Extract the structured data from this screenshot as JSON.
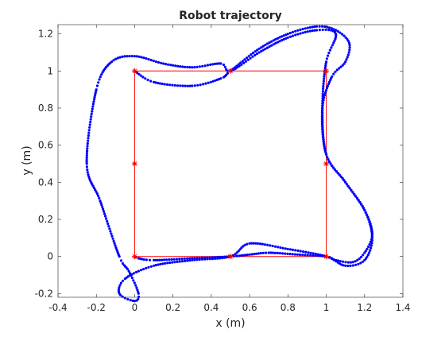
{
  "chart_data": {
    "type": "scatter",
    "title": "Robot trajectory",
    "xlabel": "x (m)",
    "ylabel": "y (m)",
    "xlim": [
      -0.4,
      1.4
    ],
    "ylim": [
      -0.22,
      1.25
    ],
    "xticks": [
      -0.4,
      -0.2,
      0,
      0.2,
      0.4,
      0.6,
      0.8,
      1,
      1.2,
      1.4
    ],
    "xtick_labels": [
      "-0.4",
      "-0.2",
      "0",
      "0.2",
      "0.4",
      "0.6",
      "0.8",
      "1",
      "1.2",
      "1.4"
    ],
    "yticks": [
      -0.2,
      0,
      0.2,
      0.4,
      0.6,
      0.8,
      1,
      1.2
    ],
    "ytick_labels": [
      "-0.2",
      "0",
      "0.2",
      "0.4",
      "0.6",
      "0.8",
      "1",
      "1.2"
    ],
    "grid": false,
    "legend": "none",
    "colors": {
      "trajectory": "#0000ff",
      "path": "#ff0000",
      "waypoints": "#ff0000",
      "axes": "#262626"
    },
    "reference_path": {
      "x": [
        0,
        1,
        1,
        0,
        0
      ],
      "y": [
        0,
        0,
        1,
        1,
        0
      ]
    },
    "waypoints": {
      "x": [
        0,
        0.5,
        1,
        1,
        1,
        0.5,
        0,
        0
      ],
      "y": [
        0,
        0,
        0,
        0.5,
        1,
        1,
        1,
        0.5
      ]
    },
    "trajectory_keypoints": {
      "x": [
        0,
        0.1,
        0.3,
        0.45,
        0.5,
        0.65,
        0.8,
        0.95,
        1.05,
        1.12,
        1.1,
        1.03,
        0.98,
        1.0,
        1.1,
        1.2,
        1.24,
        1.2,
        1.1,
        1.0,
        0.8,
        0.6,
        0.5,
        0.3,
        0.1,
        -0.05,
        -0.08,
        0,
        0.02,
        -0.03,
        -0.08,
        -0.18,
        -0.25,
        -0.2,
        -0.12,
        0,
        0.15,
        0.3,
        0.45,
        0.5,
        0.65,
        0.8,
        0.95,
        1.05,
        1.0,
        0.98,
        1.0,
        1.1,
        1.2,
        1.24,
        1.2,
        1.14,
        1.05,
        1.0,
        0.85,
        0.7,
        0.6,
        0.5,
        0.3,
        0.1,
        0.02,
        0
      ],
      "y": [
        1.0,
        0.94,
        0.92,
        0.96,
        1.0,
        1.12,
        1.2,
        1.24,
        1.22,
        1.15,
        1.05,
        0.97,
        0.8,
        0.55,
        0.4,
        0.25,
        0.1,
        -0.02,
        -0.05,
        0.0,
        0.04,
        0.07,
        0.0,
        -0.02,
        -0.05,
        -0.12,
        -0.2,
        -0.24,
        -0.2,
        -0.08,
        0.0,
        0.3,
        0.5,
        0.9,
        1.05,
        1.08,
        1.04,
        1.02,
        1.04,
        1.0,
        1.1,
        1.18,
        1.22,
        1.2,
        1.05,
        0.8,
        0.55,
        0.4,
        0.25,
        0.12,
        0.02,
        -0.03,
        -0.02,
        0.0,
        0.01,
        0.02,
        0.01,
        0.0,
        -0.01,
        -0.02,
        -0.01,
        0.0
      ]
    }
  }
}
